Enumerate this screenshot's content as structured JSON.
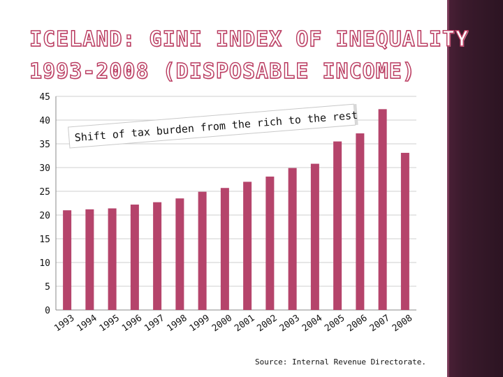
{
  "slide": {
    "title_line1": "ICELAND: GINI INDEX OF INEQUALITY",
    "title_line2": "1993-2008 (DISPOSABLE INCOME)",
    "source": "Source: Internal Revenue Directorate."
  },
  "colors": {
    "bar": "#b5446b",
    "title_outline": "#b8395e",
    "side_band": "#3a1a2c"
  },
  "chart_data": {
    "type": "bar",
    "categories": [
      "1993",
      "1994",
      "1995",
      "1996",
      "1997",
      "1998",
      "1999",
      "2000",
      "2001",
      "2002",
      "2003",
      "2004",
      "2005",
      "2006",
      "2007",
      "2008"
    ],
    "values": [
      21.0,
      21.2,
      21.4,
      22.2,
      22.7,
      23.5,
      24.9,
      25.7,
      27.0,
      28.1,
      29.9,
      30.8,
      35.5,
      37.2,
      42.3,
      33.1
    ],
    "ylim": [
      0,
      45
    ],
    "yticks": [
      0,
      5,
      10,
      15,
      20,
      25,
      30,
      35,
      40,
      45
    ],
    "grid": true,
    "annotation": "Shift of tax burden from the rich to the rest"
  }
}
